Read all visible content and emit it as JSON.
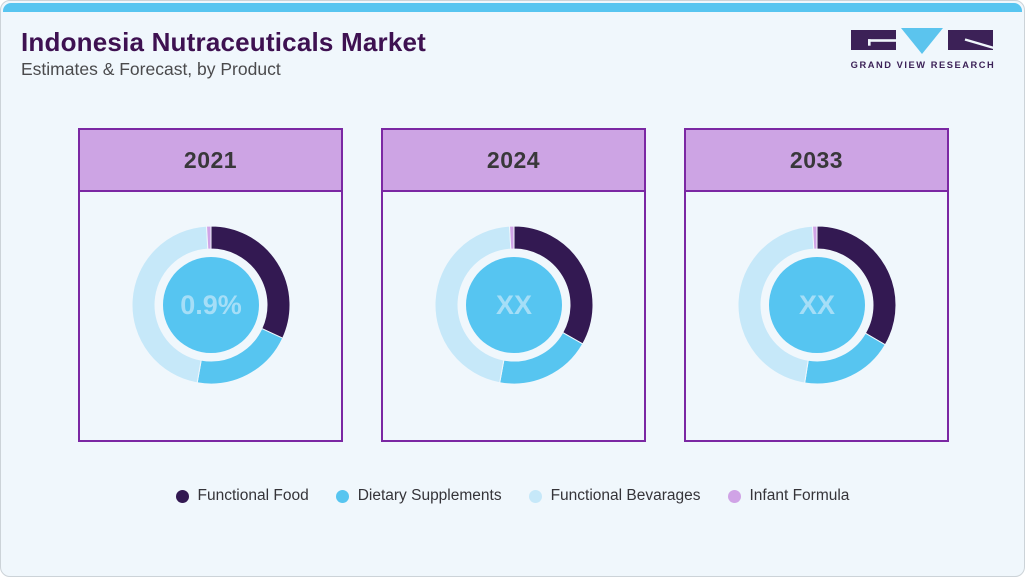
{
  "page": {
    "title": "Indonesia Nutraceuticals Market",
    "subtitle": "Estimates & Forecast, by Product"
  },
  "logo": {
    "text": "GRAND VIEW RESEARCH",
    "purple": "#3c2157",
    "blue": "#5bc4ee"
  },
  "colors": {
    "background": "#f0f7fc",
    "accent_bar": "#58c5f0",
    "card_border": "#7b28a3",
    "card_header_bg": "#cda4e4",
    "donut_center_fill": "#56c5f1",
    "donut_center_text": "#a5def7"
  },
  "chart_data": {
    "type": "pie",
    "subtype": "donut",
    "unit": "%",
    "legend_position": "bottom",
    "series": [
      {
        "name": "Functional Food",
        "color": "#331952"
      },
      {
        "name": "Dietary Supplements",
        "color": "#57c5f0"
      },
      {
        "name": "Functional Bevarages",
        "color": "#c6e8f9"
      },
      {
        "name": "Infant Formula",
        "color": "#d0a3e6"
      }
    ],
    "charts": [
      {
        "year": "2021",
        "center_label": "0.9%",
        "values": [
          31.9,
          20.9,
          46.3,
          0.9
        ]
      },
      {
        "year": "2024",
        "center_label": "XX",
        "values": [
          33.2,
          19.7,
          46.2,
          0.9
        ]
      },
      {
        "year": "2033",
        "center_label": "XX",
        "values": [
          33.4,
          19.1,
          46.6,
          0.9
        ]
      }
    ]
  }
}
